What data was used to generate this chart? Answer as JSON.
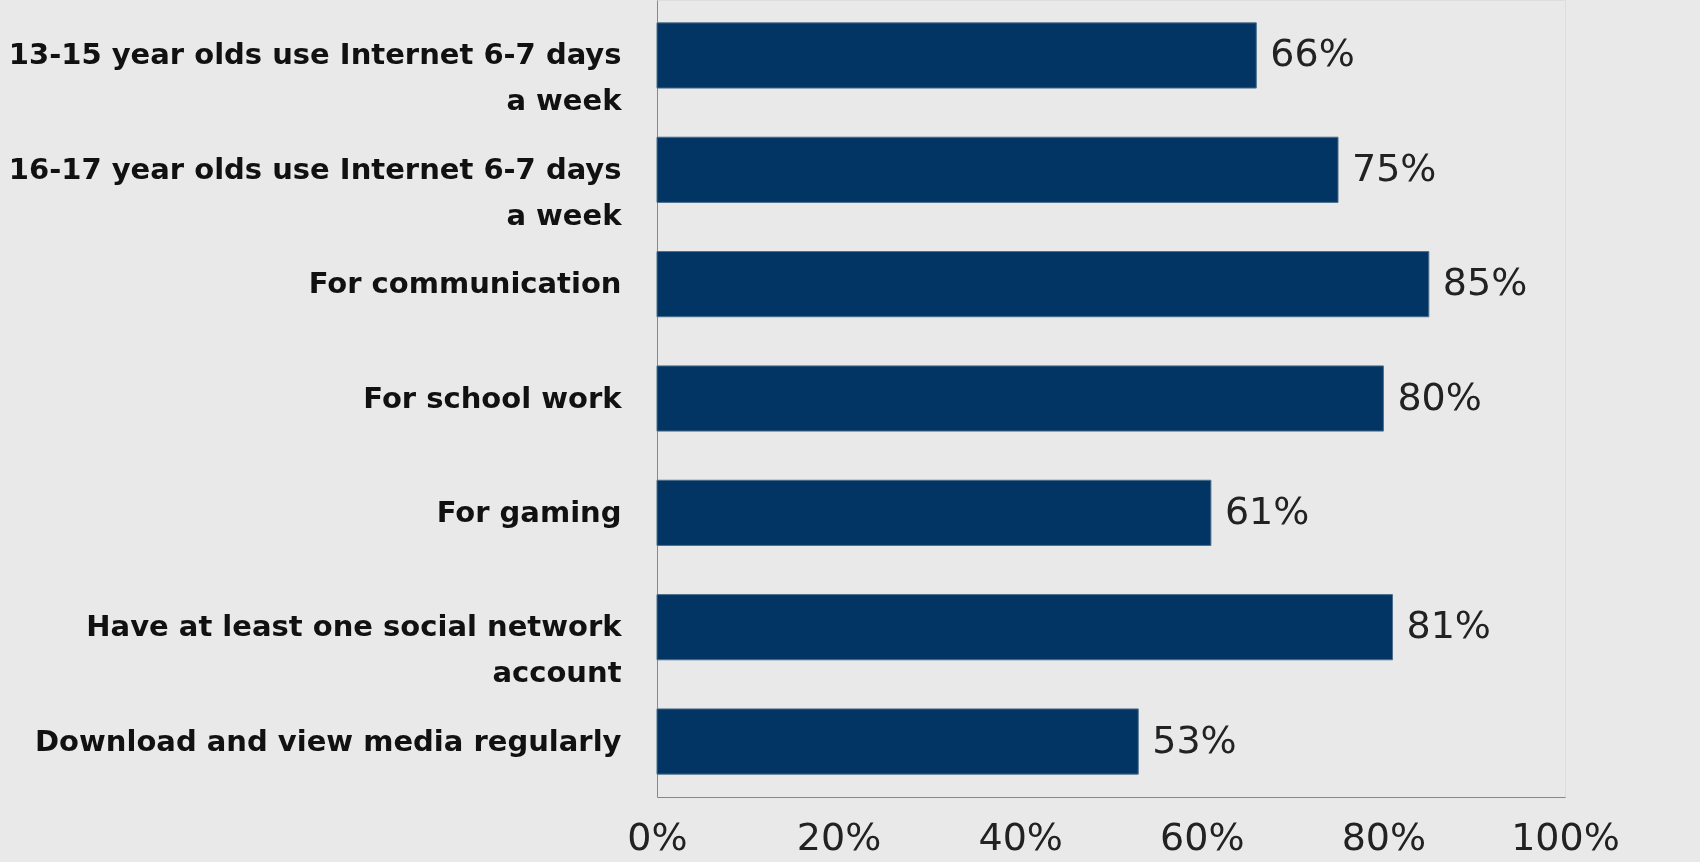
{
  "chart_data": {
    "type": "bar",
    "orientation": "horizontal",
    "categories": [
      "13-15 year olds use Internet 6-7 days a week",
      "16-17 year olds use Internet 6-7 days a week",
      "For communication",
      "For school work",
      "For gaming",
      "Have at least one social network account",
      "Download and view media regularly"
    ],
    "values": [
      66,
      75,
      85,
      80,
      61,
      81,
      53
    ],
    "value_labels": [
      "66%",
      "75%",
      "85%",
      "80%",
      "61%",
      "81%",
      "53%"
    ],
    "color": "#023564",
    "xlim": [
      0,
      100
    ],
    "xticks": [
      {
        "value": 0,
        "label": "0%"
      },
      {
        "value": 20,
        "label": "20%"
      },
      {
        "value": 40,
        "label": "40%"
      },
      {
        "value": 60,
        "label": "60%"
      },
      {
        "value": 80,
        "label": "80%"
      },
      {
        "value": 100,
        "label": "100%"
      }
    ],
    "grid": false
  }
}
